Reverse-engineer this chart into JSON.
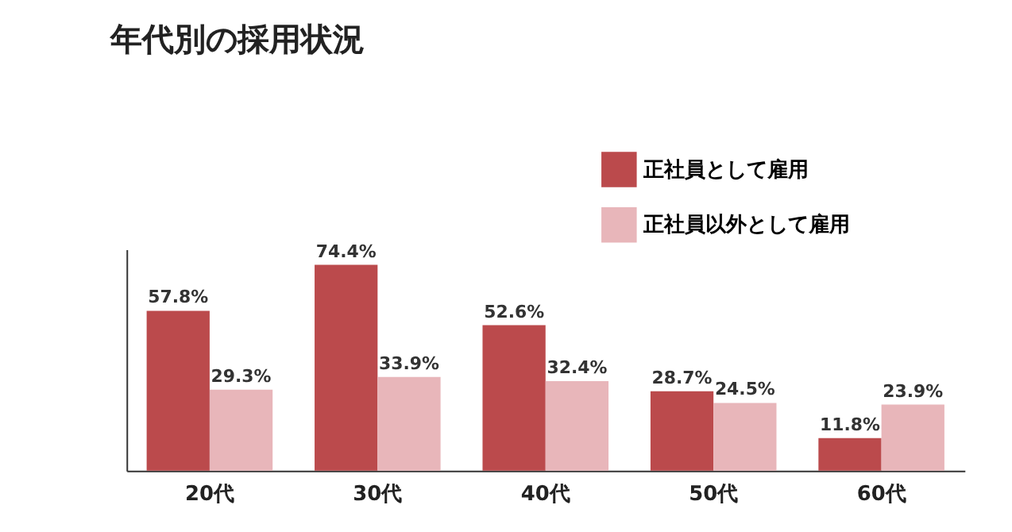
{
  "chart_data": {
    "type": "bar",
    "title": "年代別の採用状況",
    "categories": [
      "20代",
      "30代",
      "40代",
      "50代",
      "60代"
    ],
    "series": [
      {
        "name": "正社員として雇用",
        "color": "#bb4a4c",
        "values": [
          57.8,
          74.4,
          52.6,
          28.7,
          11.8
        ],
        "value_labels": [
          "57.8%",
          "74.4%",
          "52.6%",
          "28.7%",
          "11.8%"
        ]
      },
      {
        "name": "正社員以外として雇用",
        "color": "#e8b6ba",
        "values": [
          29.3,
          33.9,
          32.4,
          24.5,
          23.9
        ],
        "value_labels": [
          "29.3%",
          "33.9%",
          "32.4%",
          "24.5%",
          "23.9%"
        ]
      }
    ],
    "legend": "top right",
    "grid": false,
    "tick_labels": "x"
  }
}
